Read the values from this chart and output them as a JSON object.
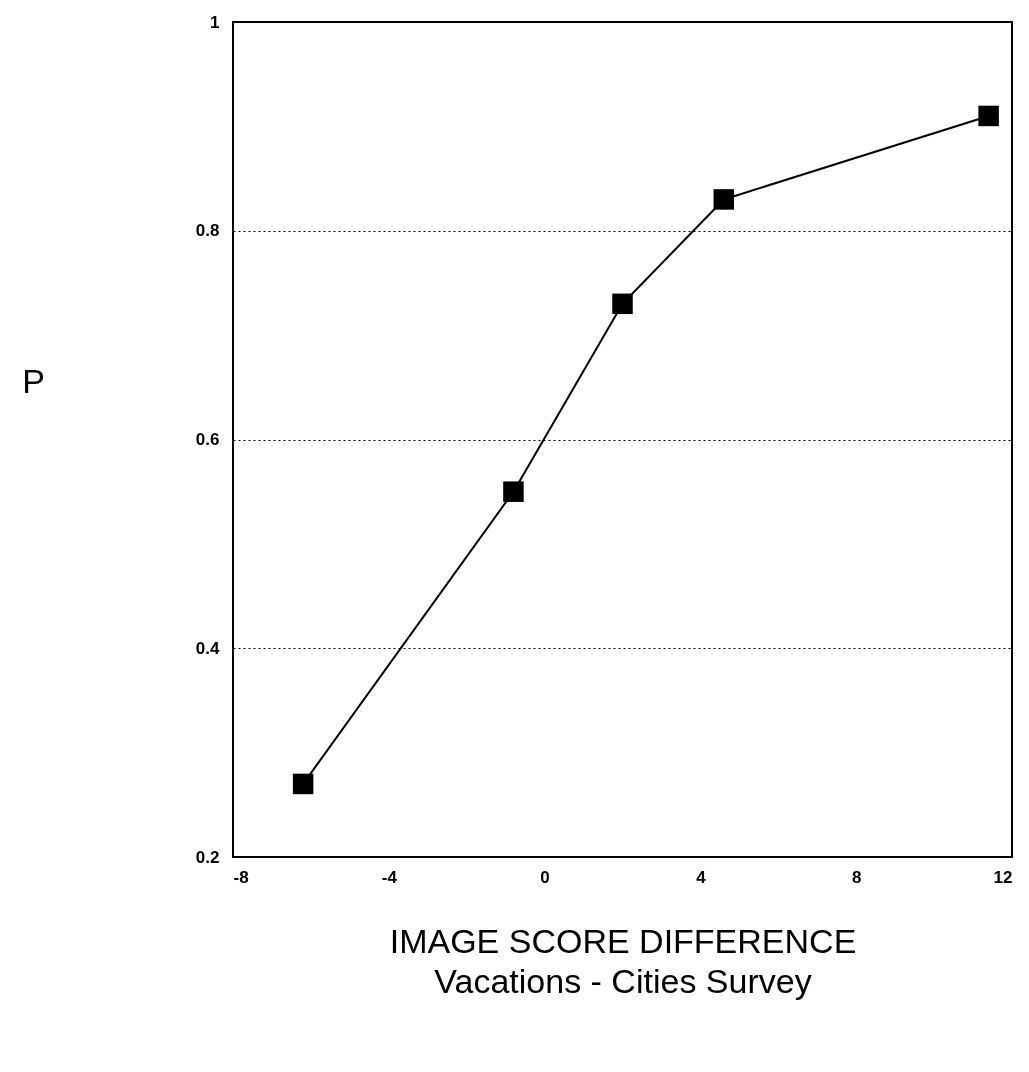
{
  "chart_data": {
    "type": "line",
    "xlabel": "IMAGE SCORE DIFFERENCE\nVacations - Cities Survey",
    "ylabel": "P",
    "x": [
      -6.2,
      -0.8,
      2.0,
      4.6,
      11.4
    ],
    "series": [
      {
        "color": "#000000",
        "values": [
          0.27,
          0.55,
          0.73,
          0.83,
          0.91
        ]
      }
    ],
    "xlim": [
      -8,
      12
    ],
    "xticks": [
      -8,
      -4,
      0,
      4,
      8,
      12
    ],
    "ylim": [
      0.2,
      1
    ],
    "yticks": [
      0.2,
      0.4,
      0.6,
      0.8,
      1
    ],
    "grid": "y",
    "marker": "square",
    "line_style": "solid"
  }
}
